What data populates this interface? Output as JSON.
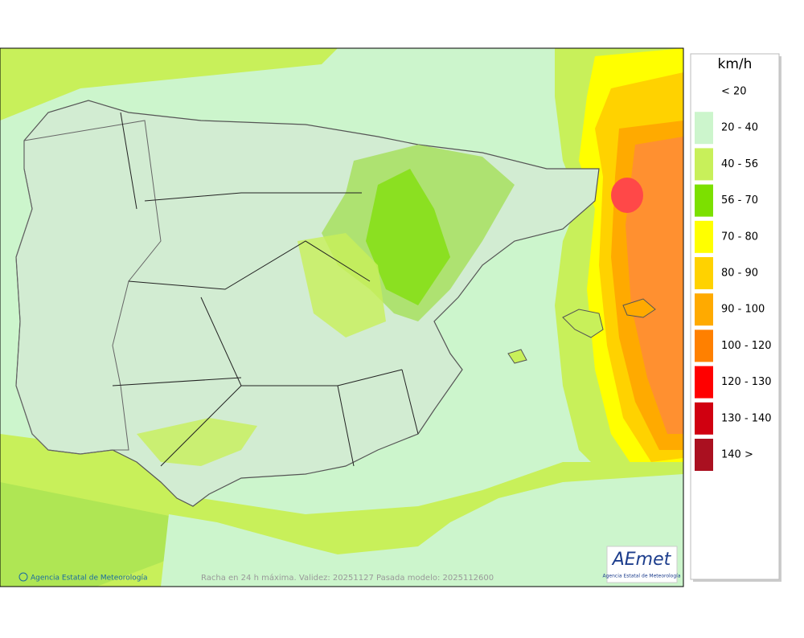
{
  "map": {
    "credit": "Agencia Estatal de Meteorología",
    "caption": "Racha en 24 h máxima. Validez: 20251127 Pasada modelo: 2025112600",
    "logo": {
      "wordmark": "AEmet",
      "subtitle": "Agencia Estatal de Meteorología"
    }
  },
  "legend": {
    "unit": "km/h",
    "items": [
      {
        "label": "< 20"
      },
      {
        "label": "20 - 40",
        "color": "#ccf5cc"
      },
      {
        "label": "40 - 56",
        "color": "#c8f05a"
      },
      {
        "label": "56 - 70",
        "color": "#7ce000"
      },
      {
        "label": "70 - 80",
        "color": "#ffff00"
      },
      {
        "label": "80 - 90",
        "color": "#ffd200"
      },
      {
        "label": "90 - 100",
        "color": "#ffaa00"
      },
      {
        "label": "100 - 120",
        "color": "#ff8000"
      },
      {
        "label": "120 - 130",
        "color": "#ff0000"
      },
      {
        "label": "130 - 140",
        "color": "#d00010"
      },
      {
        "label": "140 >",
        "color": "#aa1020"
      }
    ]
  }
}
